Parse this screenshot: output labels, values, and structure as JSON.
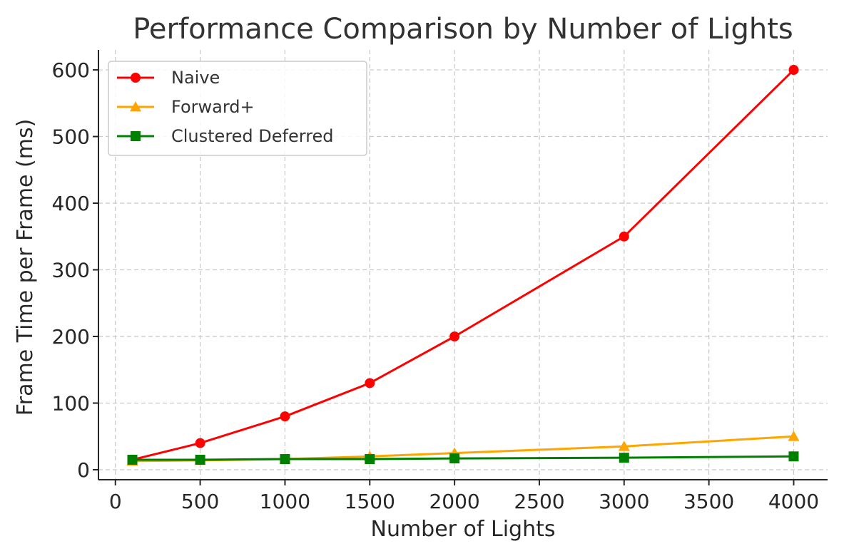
{
  "chart_data": {
    "type": "line",
    "title": "Performance Comparison by Number of Lights",
    "xlabel": "Number of Lights",
    "ylabel": "Frame Time per Frame (ms)",
    "x": [
      100,
      500,
      1000,
      1500,
      2000,
      3000,
      4000
    ],
    "xlim": [
      -100,
      4200
    ],
    "ylim": [
      -15,
      630
    ],
    "xticks": [
      0,
      500,
      1000,
      1500,
      2000,
      2500,
      3000,
      3500,
      4000
    ],
    "yticks": [
      0,
      100,
      200,
      300,
      400,
      500,
      600
    ],
    "grid": true,
    "legend_position": "top-left",
    "series": [
      {
        "name": "Naive",
        "color": "#ff0000",
        "marker": "circle",
        "values": [
          15,
          40,
          80,
          130,
          200,
          350,
          600
        ]
      },
      {
        "name": "Forward+",
        "color": "#ffa500",
        "marker": "triangle",
        "values": [
          13,
          14,
          16,
          20,
          25,
          35,
          50
        ]
      },
      {
        "name": "Clustered Deferred",
        "color": "#008000",
        "marker": "square",
        "values": [
          15,
          15,
          16,
          16,
          17,
          18,
          20
        ]
      }
    ]
  }
}
